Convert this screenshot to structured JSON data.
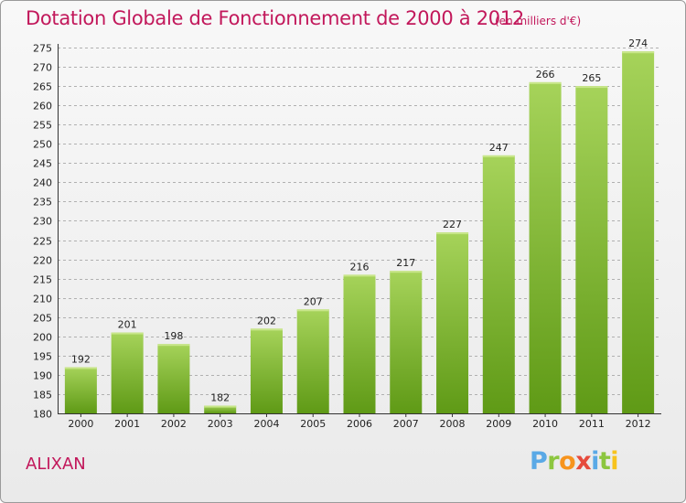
{
  "header": {
    "title": "Dotation Globale de Fonctionnement de 2000 à 2012",
    "subtitle": "(en milliers d'€)"
  },
  "footer": {
    "commune": "ALIXAN",
    "logo_text": "Proxiti"
  },
  "colors": {
    "title": "#c2185b",
    "bar_top": "#a6d35a",
    "bar_bottom": "#5f9a16",
    "grid": "#b0b0b0"
  },
  "chart_data": {
    "type": "bar",
    "title": "Dotation Globale de Fonctionnement de 2000 à 2012",
    "subtitle": "(en milliers d'€)",
    "xlabel": "",
    "ylabel": "",
    "categories": [
      "2000",
      "2001",
      "2002",
      "2003",
      "2004",
      "2005",
      "2006",
      "2007",
      "2008",
      "2009",
      "2010",
      "2011",
      "2012"
    ],
    "values": [
      192,
      201,
      198,
      182,
      202,
      207,
      216,
      217,
      227,
      247,
      266,
      265,
      274
    ],
    "ylim": [
      180,
      275
    ],
    "ytick_step": 5,
    "grid": "horizontal-dashed",
    "data_labels": true
  }
}
